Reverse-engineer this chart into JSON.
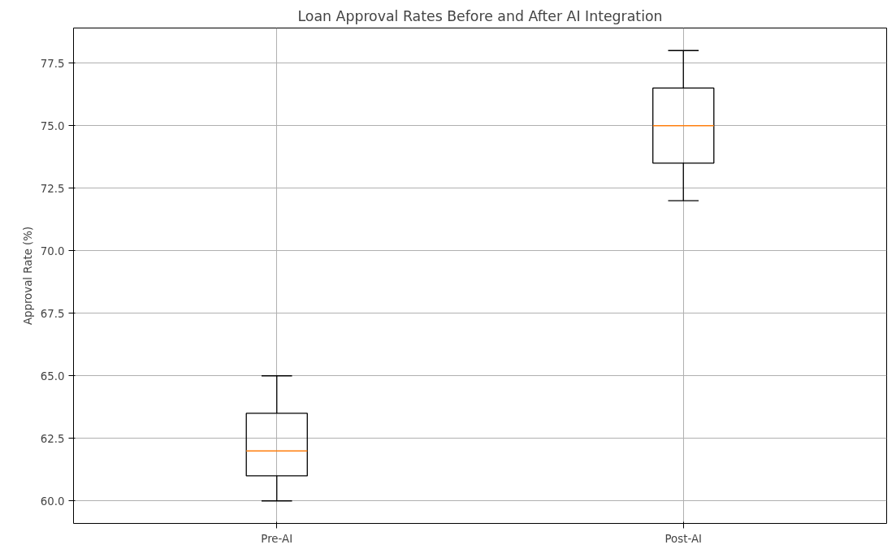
{
  "chart_data": {
    "type": "box",
    "title": "Loan Approval Rates Before and After AI Integration",
    "ylabel": "Approval Rate (%)",
    "categories": [
      "Pre-AI",
      "Post-AI"
    ],
    "boxes": [
      {
        "low": 60,
        "q1": 61,
        "median": 62,
        "q3": 63.5,
        "high": 65
      },
      {
        "low": 72,
        "q1": 73.5,
        "median": 75,
        "q3": 76.5,
        "high": 78
      }
    ],
    "color": "#000000",
    "ylim": [
      59.1,
      78.9
    ],
    "yticks": [
      {
        "value": 60,
        "label": "60.0"
      },
      {
        "value": 62.5,
        "label": "62.5"
      },
      {
        "value": 65,
        "label": "65.0"
      },
      {
        "value": 67.5,
        "label": "67.5"
      },
      {
        "value": 70,
        "label": "70.0"
      },
      {
        "value": 72.5,
        "label": "72.5"
      },
      {
        "value": 75,
        "label": "75.0"
      },
      {
        "value": 77.5,
        "label": "77.5"
      }
    ],
    "grid": true
  }
}
